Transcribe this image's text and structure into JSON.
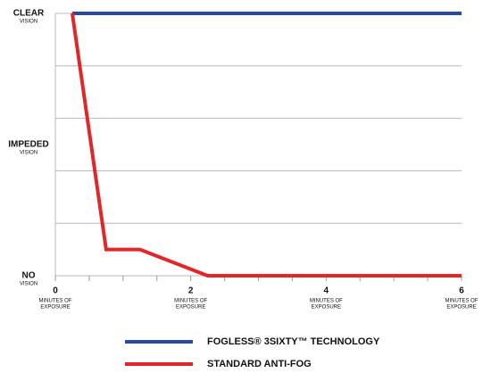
{
  "chart_data": {
    "type": "line",
    "xlim": [
      0,
      6
    ],
    "xticks": [
      0,
      2,
      4,
      6
    ],
    "xminor": [
      0,
      0.5,
      1,
      1.5,
      2,
      2.5,
      3,
      3.5,
      4,
      4.5,
      5,
      5.5,
      6
    ],
    "xtick_sublabel": [
      "MINUTES OF",
      "EXPOSURE"
    ],
    "ylim": [
      0,
      10
    ],
    "yticks": [
      {
        "value": 0,
        "label": "NO"
      },
      {
        "value": 5,
        "label": "IMPEDED"
      },
      {
        "value": 10,
        "label": "CLEAR"
      }
    ],
    "ytick_sublabel": "VISION",
    "ygrid": [
      0,
      2,
      4,
      6,
      8,
      10
    ],
    "grid": true,
    "legend": "bottom",
    "series": [
      {
        "name": "FOGLESS® 3SIXTY™ TECHNOLOGY",
        "color": "#2b4a9c",
        "x": [
          0.25,
          6
        ],
        "values": [
          10,
          10
        ]
      },
      {
        "name": "STANDARD ANTI-FOG",
        "color": "#e0282a",
        "x": [
          0.25,
          0.75,
          1.25,
          2.25,
          6
        ],
        "values": [
          10,
          1,
          1,
          0,
          0
        ]
      }
    ]
  }
}
